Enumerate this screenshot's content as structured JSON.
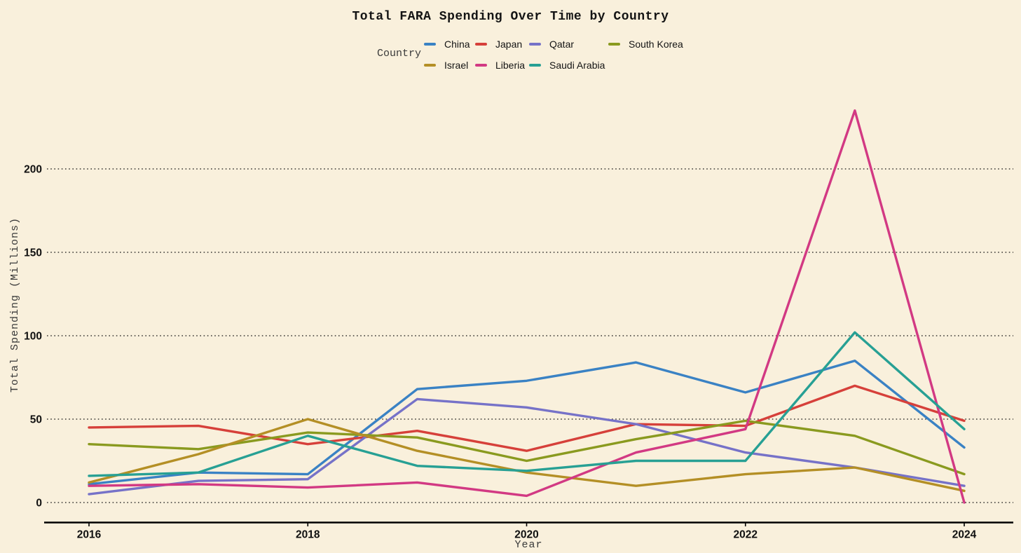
{
  "chart_data": {
    "type": "line",
    "title": "Total FARA Spending Over Time by Country",
    "xlabel": "Year",
    "ylabel": "Total Spending (Millions)",
    "legend_title": "Country",
    "background_color": "#f9f0dc",
    "grid": "horizontal dotted black lines, shown at every y tick",
    "legend_position": "top-center, two rows",
    "x": [
      2016,
      2017,
      2018,
      2019,
      2020,
      2021,
      2022,
      2023,
      2024
    ],
    "xticks": [
      2016,
      2018,
      2020,
      2022,
      2024
    ],
    "yticks": [
      0,
      50,
      100,
      150,
      200
    ],
    "xlim": [
      2015.6,
      2024.45
    ],
    "ylim": [
      0,
      240
    ],
    "series": [
      {
        "name": "China",
        "color": "#3a82c4",
        "values": [
          11,
          18,
          17,
          68,
          73,
          84,
          66,
          85,
          33
        ]
      },
      {
        "name": "Japan",
        "color": "#d6403a",
        "values": [
          45,
          46,
          35,
          43,
          31,
          47,
          46,
          70,
          49
        ]
      },
      {
        "name": "Qatar",
        "color": "#7672c8",
        "values": [
          5,
          13,
          14,
          62,
          57,
          47,
          30,
          21,
          10
        ]
      },
      {
        "name": "South Korea",
        "color": "#8a9a1f",
        "values": [
          35,
          32,
          42,
          39,
          25,
          38,
          49,
          40,
          17
        ]
      },
      {
        "name": "Israel",
        "color": "#b48f25",
        "values": [
          12,
          29,
          50,
          31,
          18,
          10,
          17,
          21,
          7
        ]
      },
      {
        "name": "Liberia",
        "color": "#d23983",
        "values": [
          10,
          11,
          9,
          12,
          4,
          30,
          44,
          235,
          0
        ]
      },
      {
        "name": "Saudi Arabia",
        "color": "#27a094",
        "values": [
          16,
          18,
          40,
          22,
          19,
          25,
          25,
          102,
          44
        ]
      }
    ],
    "legend_rows": [
      [
        "China",
        "Japan",
        "Qatar",
        "South Korea"
      ],
      [
        "Israel",
        "Liberia",
        "Saudi Arabia"
      ]
    ]
  }
}
